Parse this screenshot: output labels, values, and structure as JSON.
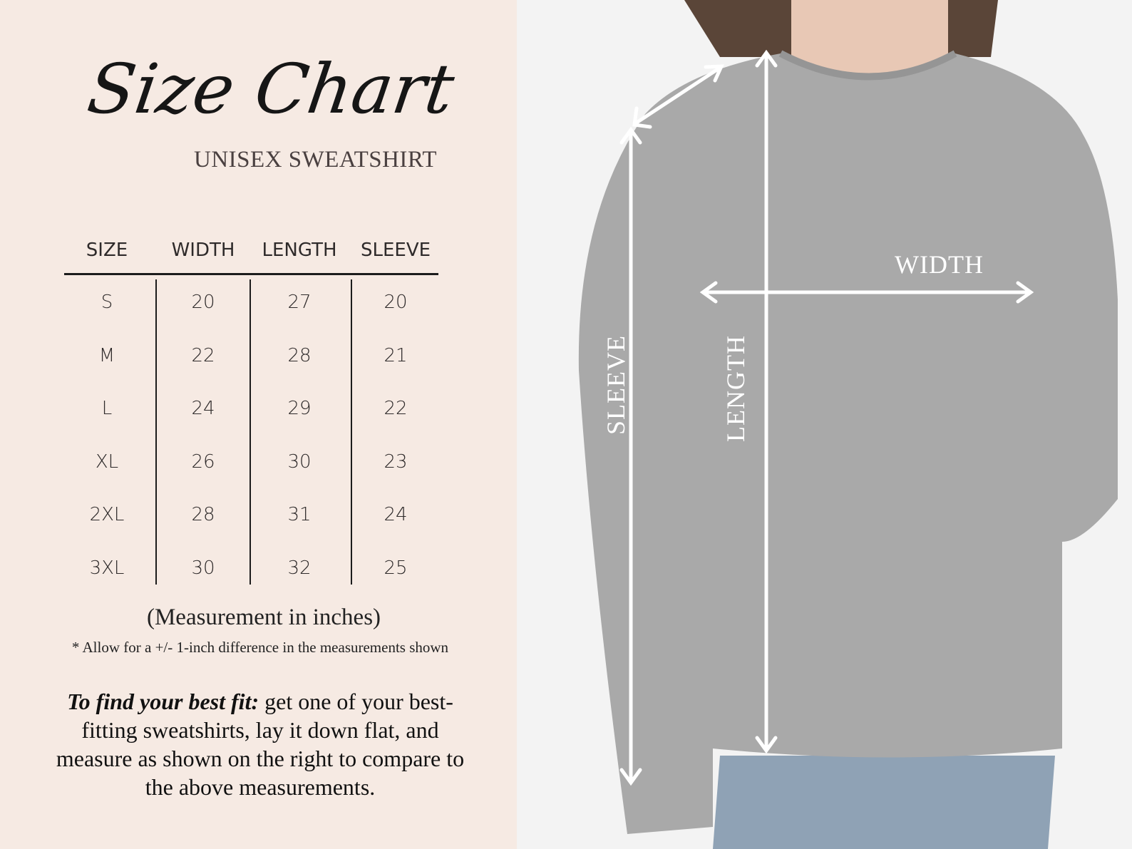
{
  "header": {
    "title": "Size Chart",
    "subtitle": "UNISEX SWEATSHIRT"
  },
  "table": {
    "columns": [
      "SIZE",
      "WIDTH",
      "LENGTH",
      "SLEEVE"
    ],
    "rows": [
      [
        "S",
        "20",
        "27",
        "20"
      ],
      [
        "M",
        "22",
        "28",
        "21"
      ],
      [
        "L",
        "24",
        "29",
        "22"
      ],
      [
        "XL",
        "26",
        "30",
        "23"
      ],
      [
        "2XL",
        "28",
        "31",
        "24"
      ],
      [
        "3XL",
        "30",
        "32",
        "25"
      ]
    ]
  },
  "footer": {
    "unit_note": "(Measurement in inches)",
    "tolerance_note": "* Allow for a +/- 1-inch difference in the measurements shown",
    "fit_lead": "To find your best fit:",
    "fit_text": " get one of your best-fitting sweatshirts, lay it down flat, and measure as shown on the right to compare to the above measurements."
  },
  "photo": {
    "labels": {
      "width": "WIDTH",
      "length": "LENGTH",
      "sleeve": "SLEEVE"
    },
    "colors": {
      "background": "#f6eae3",
      "sweatshirt": "#a8a8a8",
      "arrows": "#ffffff"
    }
  }
}
